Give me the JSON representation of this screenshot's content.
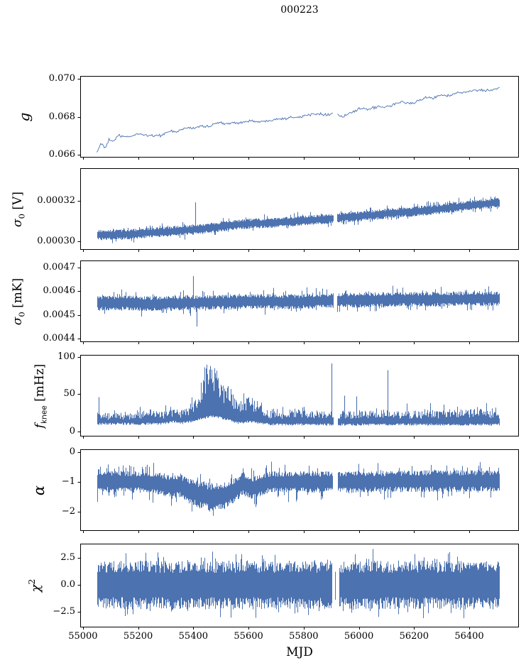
{
  "chart_data": {
    "type": "line",
    "title": "000223",
    "xlabel": "MJD",
    "grid": false,
    "legend": "none",
    "line_color": "#4c72b0",
    "axis_color": "#000000",
    "background": "#ffffff",
    "xaxis": {
      "lim": [
        54990,
        56580
      ],
      "data_range": [
        55050,
        56510
      ],
      "ticks": [
        {
          "v": 55000,
          "label": "55000"
        },
        {
          "v": 55200,
          "label": "55200"
        },
        {
          "v": 55400,
          "label": "55400"
        },
        {
          "v": 55600,
          "label": "55600"
        },
        {
          "v": 55800,
          "label": "55800"
        },
        {
          "v": 56000,
          "label": "56000"
        },
        {
          "v": 56200,
          "label": "56200"
        },
        {
          "v": 56400,
          "label": "56400"
        }
      ]
    },
    "subplots": [
      {
        "id": "g",
        "ylabel": {
          "main": "g",
          "sub": "",
          "sup": "",
          "unit": "",
          "italic": true
        },
        "ylim": [
          0.06585,
          0.07015
        ],
        "yticks": [
          {
            "v": 0.066,
            "label": "0.066"
          },
          {
            "v": 0.068,
            "label": "0.068"
          },
          {
            "v": 0.07,
            "label": "0.070"
          }
        ],
        "style": "line",
        "n": 430,
        "sigma": 9e-05,
        "gaps": [
          [
            55906,
            55920
          ]
        ],
        "trend": [
          [
            55050,
            0.0661
          ],
          [
            55065,
            0.0666
          ],
          [
            55080,
            0.0663
          ],
          [
            55095,
            0.0668
          ],
          [
            55110,
            0.0667
          ],
          [
            55130,
            0.067
          ],
          [
            55160,
            0.0669
          ],
          [
            55200,
            0.0671
          ],
          [
            55240,
            0.067
          ],
          [
            55280,
            0.067
          ],
          [
            55310,
            0.0672
          ],
          [
            55340,
            0.0672
          ],
          [
            55370,
            0.0674
          ],
          [
            55400,
            0.0674
          ],
          [
            55430,
            0.0675
          ],
          [
            55460,
            0.0675
          ],
          [
            55490,
            0.0677
          ],
          [
            55520,
            0.0676
          ],
          [
            55550,
            0.0677
          ],
          [
            55580,
            0.0677
          ],
          [
            55610,
            0.0678
          ],
          [
            55640,
            0.0677
          ],
          [
            55670,
            0.0678
          ],
          [
            55700,
            0.0679
          ],
          [
            55730,
            0.0679
          ],
          [
            55760,
            0.068
          ],
          [
            55790,
            0.068
          ],
          [
            55820,
            0.0681
          ],
          [
            55850,
            0.0682
          ],
          [
            55880,
            0.0681
          ],
          [
            55910,
            0.0682
          ],
          [
            55940,
            0.068
          ],
          [
            55970,
            0.0682
          ],
          [
            56000,
            0.0684
          ],
          [
            56030,
            0.0684
          ],
          [
            56060,
            0.0685
          ],
          [
            56090,
            0.0685
          ],
          [
            56120,
            0.0686
          ],
          [
            56150,
            0.0688
          ],
          [
            56180,
            0.0687
          ],
          [
            56210,
            0.0688
          ],
          [
            56240,
            0.069
          ],
          [
            56270,
            0.069
          ],
          [
            56300,
            0.0692
          ],
          [
            56330,
            0.0691
          ],
          [
            56360,
            0.0693
          ],
          [
            56390,
            0.0693
          ],
          [
            56420,
            0.0694
          ],
          [
            56450,
            0.0694
          ],
          [
            56480,
            0.0694
          ],
          [
            56510,
            0.0695
          ]
        ]
      },
      {
        "id": "sigma0-v",
        "ylabel": {
          "main": "σ",
          "sub": "0",
          "sup": "",
          "unit": " [V]",
          "italic": true
        },
        "ylim": [
          0.000296,
          0.000336
        ],
        "yticks": [
          {
            "v": 0.0003,
            "label": "0.00030"
          },
          {
            "v": 0.00032,
            "label": "0.00032"
          }
        ],
        "style": "band",
        "halfwidth": 2.3e-06,
        "tail": 2.2e-06,
        "gaps": [
          [
            55906,
            55920
          ]
        ],
        "spikes": [
          [
            55408,
            0.0003193
          ]
        ],
        "trend": [
          [
            55050,
            0.000303
          ],
          [
            55120,
            0.0003034
          ],
          [
            55180,
            0.0003036
          ],
          [
            55250,
            0.0003044
          ],
          [
            55320,
            0.000305
          ],
          [
            55400,
            0.0003058
          ],
          [
            55470,
            0.0003068
          ],
          [
            55540,
            0.000308
          ],
          [
            55610,
            0.0003088
          ],
          [
            55680,
            0.0003092
          ],
          [
            55750,
            0.0003098
          ],
          [
            55820,
            0.0003105
          ],
          [
            55890,
            0.0003112
          ],
          [
            55960,
            0.000312
          ],
          [
            56030,
            0.0003128
          ],
          [
            56100,
            0.0003138
          ],
          [
            56170,
            0.0003145
          ],
          [
            56240,
            0.0003153
          ],
          [
            56310,
            0.0003163
          ],
          [
            56380,
            0.0003175
          ],
          [
            56450,
            0.0003185
          ],
          [
            56510,
            0.0003192
          ]
        ]
      },
      {
        "id": "sigma0-mk",
        "ylabel": {
          "main": "σ",
          "sub": "0",
          "sup": "",
          "unit": " [mK]",
          "italic": true
        },
        "ylim": [
          0.004385,
          0.00473
        ],
        "yticks": [
          {
            "v": 0.0044,
            "label": "0.0044"
          },
          {
            "v": 0.0045,
            "label": "0.0045"
          },
          {
            "v": 0.0046,
            "label": "0.0046"
          },
          {
            "v": 0.0047,
            "label": "0.0047"
          }
        ],
        "style": "band",
        "halfwidth": 2.9e-05,
        "tail": 3e-05,
        "gaps": [
          [
            55906,
            55920
          ]
        ],
        "spikes": [
          [
            55398,
            0.004665
          ],
          [
            55412,
            0.00445
          ]
        ],
        "trend": [
          [
            55050,
            0.004549
          ],
          [
            55150,
            0.004552
          ],
          [
            55220,
            0.004547
          ],
          [
            55300,
            0.004549
          ],
          [
            55380,
            0.004551
          ],
          [
            55450,
            0.004553
          ],
          [
            55520,
            0.004554
          ],
          [
            55600,
            0.004556
          ],
          [
            55680,
            0.004557
          ],
          [
            55760,
            0.004555
          ],
          [
            55840,
            0.004559
          ],
          [
            55920,
            0.004561
          ],
          [
            56000,
            0.004562
          ],
          [
            56080,
            0.004564
          ],
          [
            56160,
            0.004565
          ],
          [
            56240,
            0.004566
          ],
          [
            56320,
            0.004567
          ],
          [
            56400,
            0.004568
          ],
          [
            56510,
            0.004569
          ]
        ]
      },
      {
        "id": "fknee",
        "ylabel": {
          "main": "f",
          "sub": "knee",
          "sub_sans": true,
          "sup": "",
          "unit": " [mHz]",
          "italic": true
        },
        "ylim": [
          -6,
          102
        ],
        "yticks": [
          {
            "v": 0,
            "label": "0"
          },
          {
            "v": 50,
            "label": "50"
          },
          {
            "v": 100,
            "label": "100"
          }
        ],
        "style": "envelope",
        "tail": 10,
        "gaps": [
          [
            55906,
            55922
          ]
        ],
        "spikes": [
          [
            55058,
            46
          ],
          [
            55205,
            33
          ],
          [
            55300,
            35
          ],
          [
            55902,
            91
          ],
          [
            55948,
            48
          ],
          [
            55992,
            47
          ],
          [
            56105,
            82
          ],
          [
            56308,
            36
          ]
        ],
        "lo": [
          [
            55050,
            9
          ],
          [
            55280,
            9
          ],
          [
            55330,
            12
          ],
          [
            55360,
            10
          ],
          [
            55400,
            13
          ],
          [
            55430,
            16
          ],
          [
            55460,
            19
          ],
          [
            55500,
            17
          ],
          [
            55530,
            14
          ],
          [
            55560,
            10
          ],
          [
            55600,
            12
          ],
          [
            55640,
            10
          ],
          [
            55680,
            8
          ],
          [
            56510,
            8
          ]
        ],
        "hi": [
          [
            55050,
            26
          ],
          [
            55090,
            24
          ],
          [
            55130,
            25
          ],
          [
            55170,
            24
          ],
          [
            55210,
            27
          ],
          [
            55240,
            30
          ],
          [
            55270,
            26
          ],
          [
            55300,
            25
          ],
          [
            55330,
            31
          ],
          [
            55350,
            27
          ],
          [
            55380,
            33
          ],
          [
            55400,
            38
          ],
          [
            55415,
            45
          ],
          [
            55425,
            60
          ],
          [
            55435,
            75
          ],
          [
            55445,
            85
          ],
          [
            55455,
            92
          ],
          [
            55465,
            80
          ],
          [
            55475,
            88
          ],
          [
            55485,
            78
          ],
          [
            55495,
            70
          ],
          [
            55505,
            62
          ],
          [
            55515,
            55
          ],
          [
            55525,
            62
          ],
          [
            55535,
            58
          ],
          [
            55545,
            48
          ],
          [
            55555,
            40
          ],
          [
            55565,
            36
          ],
          [
            55575,
            42
          ],
          [
            55585,
            46
          ],
          [
            55595,
            44
          ],
          [
            55605,
            47
          ],
          [
            55615,
            42
          ],
          [
            55625,
            38
          ],
          [
            55635,
            50
          ],
          [
            55645,
            40
          ],
          [
            55655,
            30
          ],
          [
            55670,
            28
          ],
          [
            55700,
            31
          ],
          [
            55730,
            27
          ],
          [
            55760,
            30
          ],
          [
            55790,
            28
          ],
          [
            55820,
            26
          ],
          [
            55850,
            28
          ],
          [
            55880,
            27
          ],
          [
            55910,
            26
          ],
          [
            55940,
            28
          ],
          [
            55970,
            27
          ],
          [
            56000,
            29
          ],
          [
            56030,
            27
          ],
          [
            56060,
            28
          ],
          [
            56100,
            30
          ],
          [
            56140,
            27
          ],
          [
            56180,
            28
          ],
          [
            56220,
            27
          ],
          [
            56260,
            30
          ],
          [
            56300,
            28
          ],
          [
            56340,
            31
          ],
          [
            56380,
            28
          ],
          [
            56420,
            30
          ],
          [
            56460,
            29
          ],
          [
            56510,
            27
          ]
        ]
      },
      {
        "id": "alpha",
        "ylabel": {
          "main": "α",
          "sub": "",
          "sup": "",
          "unit": "",
          "italic": true
        },
        "ylim": [
          -2.62,
          0.08
        ],
        "yticks": [
          {
            "v": -2,
            "label": "−2"
          },
          {
            "v": -1,
            "label": "−1"
          },
          {
            "v": 0,
            "label": "0"
          }
        ],
        "style": "band",
        "tail": 0.35,
        "gaps": [
          [
            55905,
            55922
          ]
        ],
        "spikes": [],
        "trend": [
          [
            55050,
            -1.0
          ],
          [
            55150,
            -0.98
          ],
          [
            55250,
            -1.02
          ],
          [
            55290,
            -1.08
          ],
          [
            55320,
            -1.18
          ],
          [
            55345,
            -1.1
          ],
          [
            55370,
            -1.22
          ],
          [
            55400,
            -1.35
          ],
          [
            55430,
            -1.45
          ],
          [
            55465,
            -1.5
          ],
          [
            55500,
            -1.47
          ],
          [
            55530,
            -1.38
          ],
          [
            55555,
            -1.22
          ],
          [
            55575,
            -1.05
          ],
          [
            55595,
            -1.12
          ],
          [
            55615,
            -1.2
          ],
          [
            55640,
            -1.12
          ],
          [
            55665,
            -1.02
          ],
          [
            55700,
            -1.0
          ],
          [
            55900,
            -1.0
          ],
          [
            56100,
            -0.98
          ],
          [
            56300,
            -0.97
          ],
          [
            56510,
            -0.95
          ]
        ],
        "halfwidth_trend": [
          [
            55050,
            0.32
          ],
          [
            55280,
            0.33
          ],
          [
            55320,
            0.36
          ],
          [
            55380,
            0.4
          ],
          [
            55430,
            0.42
          ],
          [
            55500,
            0.42
          ],
          [
            55560,
            0.38
          ],
          [
            55620,
            0.36
          ],
          [
            55680,
            0.33
          ],
          [
            56510,
            0.33
          ]
        ]
      },
      {
        "id": "chi2",
        "ylabel": {
          "main": "χ",
          "sub": "",
          "sup": "2",
          "unit": "",
          "italic": true
        },
        "ylim": [
          -3.9,
          3.8
        ],
        "yticks": [
          {
            "v": -2.5,
            "label": "−2.5"
          },
          {
            "v": 0,
            "label": "0.0"
          },
          {
            "v": 2.5,
            "label": "2.5"
          }
        ],
        "style": "band",
        "halfwidth": 2.05,
        "tail": 1.25,
        "gaps": [
          [
            55903,
            55912
          ],
          [
            55916,
            55927
          ]
        ],
        "spikes": [],
        "trend": [
          [
            55050,
            0
          ],
          [
            56510,
            0
          ]
        ]
      }
    ]
  }
}
